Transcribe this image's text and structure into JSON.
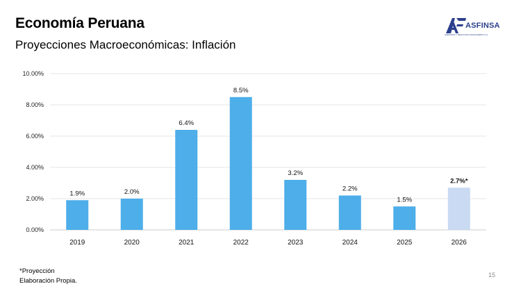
{
  "header": {
    "title": "Economía Peruana",
    "subtitle": "Proyecciones Macroeconómicas: Inflación"
  },
  "logo": {
    "name": "ASFINSA",
    "tagline": "ASESORIA Y NEGOCIOS FINANCIEROS S.A.",
    "color": "#2b3f8c"
  },
  "chart_data": {
    "type": "bar",
    "categories": [
      "2019",
      "2020",
      "2021",
      "2022",
      "2023",
      "2024",
      "2025",
      "2026"
    ],
    "values": [
      1.9,
      2.0,
      6.4,
      8.5,
      3.2,
      2.2,
      1.5,
      2.7
    ],
    "data_labels": [
      "1.9%",
      "2.0%",
      "6.4%",
      "8.5%",
      "3.2%",
      "2.2%",
      "1.5%",
      "2.7%*"
    ],
    "projected_index": 7,
    "y_ticks": [
      "0.00%",
      "2.00%",
      "4.00%",
      "6.00%",
      "8.00%",
      "10.00%"
    ],
    "ylim": [
      0,
      10
    ],
    "grid": true,
    "colors": {
      "bar": "#4daeea",
      "projected": "#c9daf2",
      "grid": "#e6e6e6"
    }
  },
  "footer": {
    "note1": "*Proyección",
    "note2": "Elaboración Propia.",
    "page_number": "15"
  }
}
